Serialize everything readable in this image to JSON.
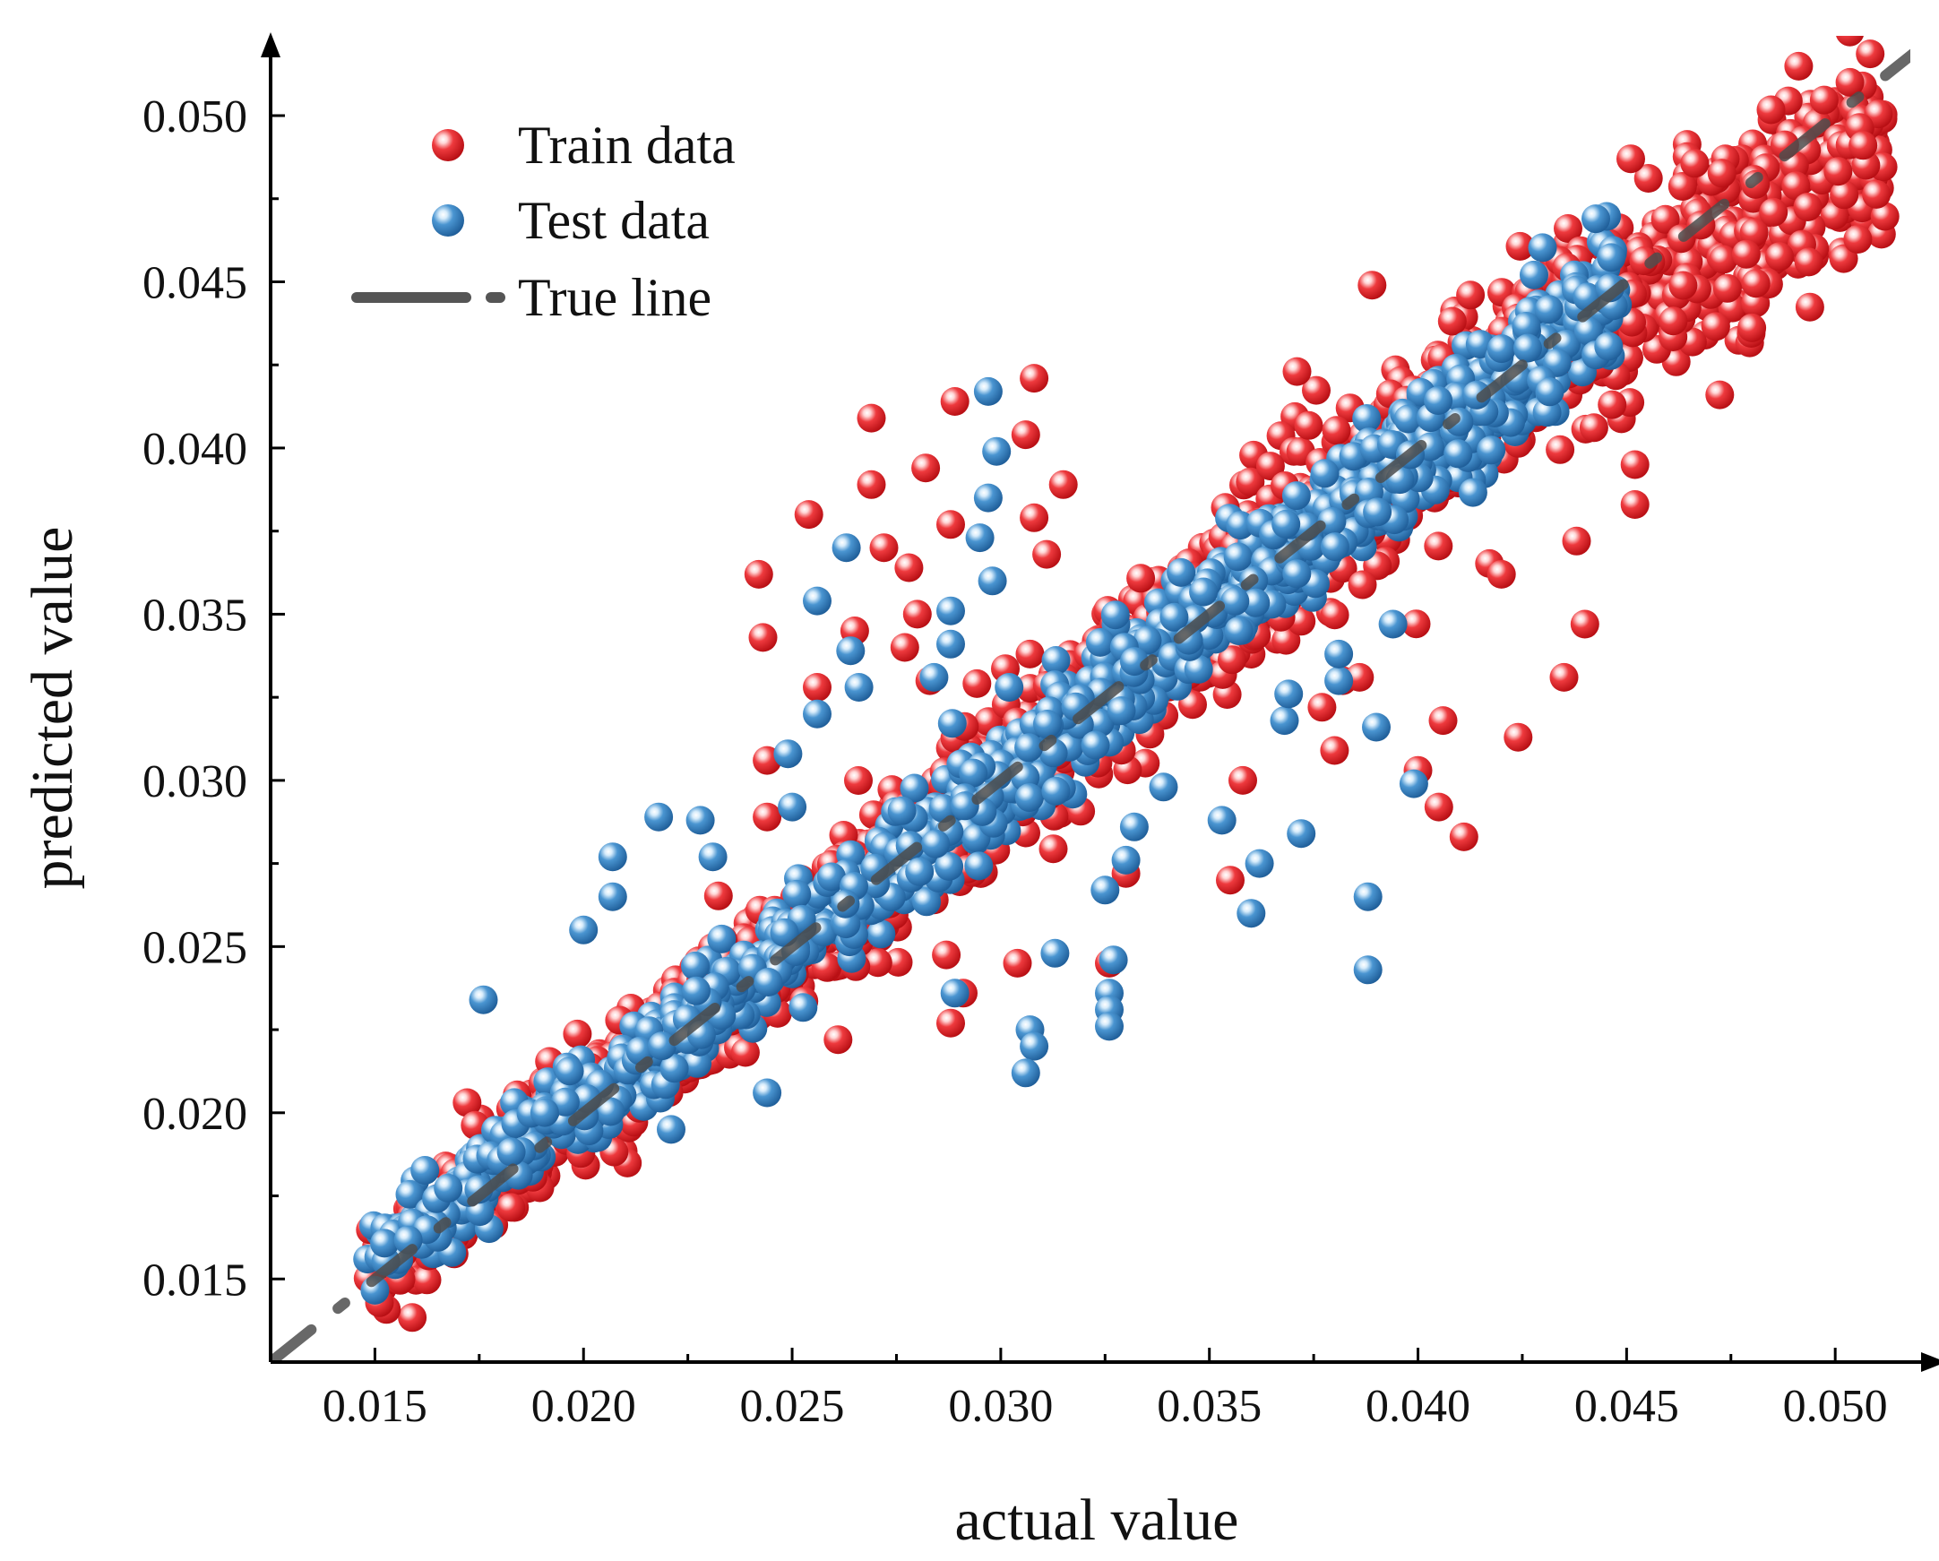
{
  "chart_data": {
    "type": "scatter",
    "title": "",
    "xlabel": "actual value",
    "ylabel": "predicted value",
    "xlim": [
      0.0125,
      0.0518
    ],
    "ylim": [
      0.0125,
      0.0524
    ],
    "x_ticks": [
      "0.015",
      "0.020",
      "0.025",
      "0.030",
      "0.035",
      "0.040",
      "0.045",
      "0.050"
    ],
    "y_ticks": [
      "0.015",
      "0.020",
      "0.025",
      "0.030",
      "0.035",
      "0.040",
      "0.045",
      "0.050"
    ],
    "x_tick_values": [
      0.015,
      0.02,
      0.025,
      0.03,
      0.035,
      0.04,
      0.045,
      0.05
    ],
    "y_tick_values": [
      0.015,
      0.02,
      0.025,
      0.03,
      0.035,
      0.04,
      0.045,
      0.05
    ],
    "legend_position": "top-left",
    "colors": {
      "train": "#e3262b",
      "test": "#3d86c4",
      "true_line": "#4d4d4d"
    },
    "series": [
      {
        "name": "Train data",
        "approx_x_range": [
          0.0148,
          0.0512
        ],
        "approx_n_points": 1800,
        "outliers": [
          [
            0.0269,
            0.0409
          ],
          [
            0.0289,
            0.0414
          ],
          [
            0.0308,
            0.0421
          ],
          [
            0.0282,
            0.0394
          ],
          [
            0.0269,
            0.0389
          ],
          [
            0.0306,
            0.0404
          ],
          [
            0.0315,
            0.0389
          ],
          [
            0.0254,
            0.038
          ],
          [
            0.0288,
            0.0377
          ],
          [
            0.0308,
            0.0379
          ],
          [
            0.0311,
            0.0368
          ],
          [
            0.0242,
            0.0362
          ],
          [
            0.0278,
            0.0364
          ],
          [
            0.0272,
            0.037
          ],
          [
            0.0243,
            0.0343
          ],
          [
            0.028,
            0.035
          ],
          [
            0.0277,
            0.034
          ],
          [
            0.0265,
            0.0345
          ],
          [
            0.0307,
            0.0338
          ],
          [
            0.0283,
            0.033
          ],
          [
            0.0256,
            0.0328
          ],
          [
            0.0244,
            0.0306
          ],
          [
            0.0244,
            0.0289
          ],
          [
            0.0291,
            0.0236
          ],
          [
            0.0288,
            0.0227
          ],
          [
            0.0261,
            0.0222
          ],
          [
            0.0304,
            0.0245
          ],
          [
            0.0326,
            0.0245
          ],
          [
            0.033,
            0.0272
          ],
          [
            0.0355,
            0.027
          ],
          [
            0.0358,
            0.03
          ],
          [
            0.0377,
            0.0322
          ],
          [
            0.038,
            0.0309
          ],
          [
            0.0382,
            0.033
          ],
          [
            0.0386,
            0.0331
          ],
          [
            0.0406,
            0.0318
          ],
          [
            0.04,
            0.0303
          ],
          [
            0.0405,
            0.0292
          ],
          [
            0.0411,
            0.0283
          ],
          [
            0.0424,
            0.0313
          ],
          [
            0.042,
            0.0362
          ],
          [
            0.0435,
            0.0331
          ],
          [
            0.044,
            0.0347
          ],
          [
            0.0438,
            0.0372
          ],
          [
            0.0452,
            0.0395
          ],
          [
            0.0452,
            0.0383
          ],
          [
            0.0389,
            0.0449
          ],
          [
            0.0371,
            0.0423
          ],
          [
            0.0451,
            0.0487
          ]
        ]
      },
      {
        "name": "Test data",
        "approx_x_range": [
          0.0148,
          0.0448
        ],
        "approx_n_points": 1200,
        "outliers": [
          [
            0.0297,
            0.0417
          ],
          [
            0.0299,
            0.0399
          ],
          [
            0.0297,
            0.0385
          ],
          [
            0.0295,
            0.0373
          ],
          [
            0.0298,
            0.036
          ],
          [
            0.0263,
            0.037
          ],
          [
            0.0256,
            0.0354
          ],
          [
            0.0288,
            0.0351
          ],
          [
            0.0288,
            0.0341
          ],
          [
            0.0264,
            0.0339
          ],
          [
            0.0266,
            0.0328
          ],
          [
            0.0284,
            0.0331
          ],
          [
            0.0256,
            0.032
          ],
          [
            0.0249,
            0.0308
          ],
          [
            0.025,
            0.0292
          ],
          [
            0.0218,
            0.0289
          ],
          [
            0.0228,
            0.0288
          ],
          [
            0.0207,
            0.0277
          ],
          [
            0.0231,
            0.0277
          ],
          [
            0.0207,
            0.0265
          ],
          [
            0.02,
            0.0255
          ],
          [
            0.0176,
            0.0234
          ],
          [
            0.0221,
            0.0195
          ],
          [
            0.0244,
            0.0206
          ],
          [
            0.0289,
            0.0236
          ],
          [
            0.0307,
            0.0225
          ],
          [
            0.0308,
            0.022
          ],
          [
            0.0306,
            0.0212
          ],
          [
            0.0326,
            0.0236
          ],
          [
            0.0326,
            0.0231
          ],
          [
            0.0326,
            0.0226
          ],
          [
            0.0327,
            0.0246
          ],
          [
            0.0313,
            0.0248
          ],
          [
            0.0325,
            0.0267
          ],
          [
            0.033,
            0.0276
          ],
          [
            0.0332,
            0.0286
          ],
          [
            0.0339,
            0.0298
          ],
          [
            0.0353,
            0.0288
          ],
          [
            0.0362,
            0.0275
          ],
          [
            0.036,
            0.026
          ],
          [
            0.0372,
            0.0284
          ],
          [
            0.0368,
            0.0318
          ],
          [
            0.0369,
            0.0326
          ],
          [
            0.0381,
            0.033
          ],
          [
            0.0381,
            0.0338
          ],
          [
            0.039,
            0.0316
          ],
          [
            0.0399,
            0.0299
          ],
          [
            0.0388,
            0.0265
          ],
          [
            0.0388,
            0.0243
          ],
          [
            0.0394,
            0.0347
          ],
          [
            0.0302,
            0.0328
          ]
        ]
      }
    ],
    "true_line": {
      "name": "True line",
      "slope": 1,
      "intercept": 0,
      "style": "dash-dot"
    },
    "legend": [
      {
        "label": "Train data",
        "marker": "sphere",
        "color": "#e3262b"
      },
      {
        "label": "Test data",
        "marker": "sphere",
        "color": "#3d86c4"
      },
      {
        "label": "True line",
        "marker": "dash-dot",
        "color": "#4d4d4d"
      }
    ]
  }
}
